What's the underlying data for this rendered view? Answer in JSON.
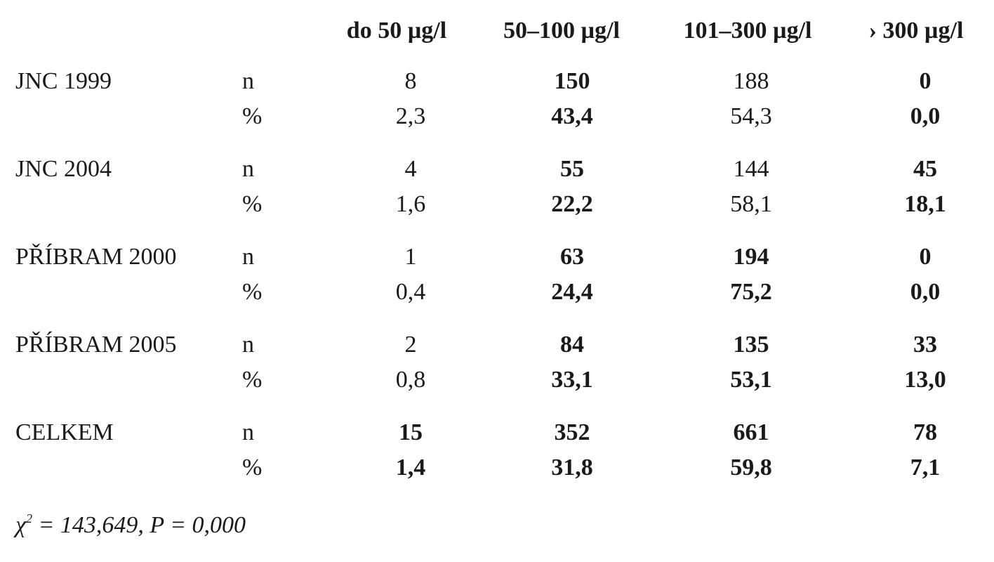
{
  "table": {
    "header": [
      "do 50 µg/l",
      "50–100 µg/l",
      "101–300 µg/l",
      "› 300 µg/l"
    ],
    "groups": [
      {
        "label": "JNC 1999",
        "rows": [
          {
            "stat": "n",
            "cells": [
              "8",
              "150",
              "188",
              "0"
            ],
            "bold": [
              false,
              true,
              false,
              true
            ]
          },
          {
            "stat": "%",
            "cells": [
              "2,3",
              "43,4",
              "54,3",
              "0,0"
            ],
            "bold": [
              false,
              true,
              false,
              true
            ]
          }
        ]
      },
      {
        "label": "JNC 2004",
        "rows": [
          {
            "stat": "n",
            "cells": [
              "4",
              "55",
              "144",
              "45"
            ],
            "bold": [
              false,
              true,
              false,
              true
            ]
          },
          {
            "stat": "%",
            "cells": [
              "1,6",
              "22,2",
              "58,1",
              "18,1"
            ],
            "bold": [
              false,
              true,
              false,
              true
            ]
          }
        ]
      },
      {
        "label": "PŘÍBRAM 2000",
        "rows": [
          {
            "stat": "n",
            "cells": [
              "1",
              "63",
              "194",
              "0"
            ],
            "bold": [
              false,
              true,
              true,
              true
            ]
          },
          {
            "stat": "%",
            "cells": [
              "0,4",
              "24,4",
              "75,2",
              "0,0"
            ],
            "bold": [
              false,
              true,
              true,
              true
            ]
          }
        ]
      },
      {
        "label": "PŘÍBRAM 2005",
        "rows": [
          {
            "stat": "n",
            "cells": [
              "2",
              "84",
              "135",
              "33"
            ],
            "bold": [
              false,
              true,
              true,
              true
            ]
          },
          {
            "stat": "%",
            "cells": [
              "0,8",
              "33,1",
              "53,1",
              "13,0"
            ],
            "bold": [
              false,
              true,
              true,
              true
            ]
          }
        ]
      },
      {
        "label": "CELKEM",
        "rows": [
          {
            "stat": "n",
            "cells": [
              "15",
              "352",
              "661",
              "78"
            ],
            "bold": [
              true,
              true,
              true,
              true
            ]
          },
          {
            "stat": "%",
            "cells": [
              "1,4",
              "31,8",
              "59,8",
              "7,1"
            ],
            "bold": [
              true,
              true,
              true,
              true
            ]
          }
        ]
      }
    ]
  },
  "footnote": {
    "symbol": "χ",
    "superscript": "2",
    "text": " = 143,649, P = 0,000"
  }
}
